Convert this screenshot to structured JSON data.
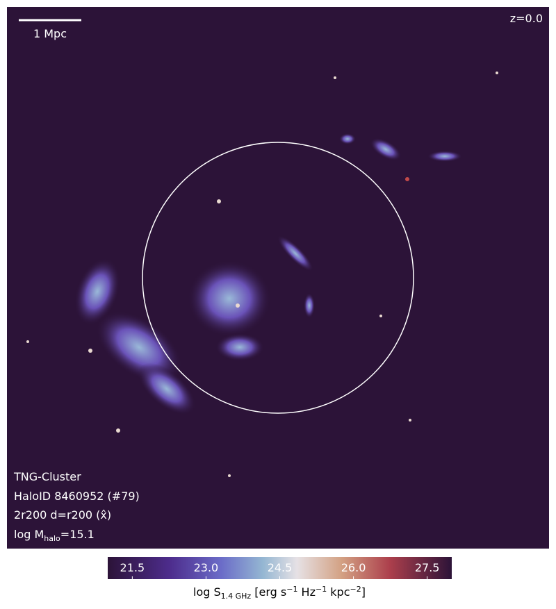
{
  "map": {
    "scale_bar": "1 Mpc",
    "redshift": "z=0.0",
    "info": [
      "TNG-Cluster",
      "HaloID 8460952 (#79)",
      "2r200 d=r200 (x̂)"
    ],
    "mass_label": [
      "log M",
      "halo",
      "=15.1"
    ]
  },
  "colorbar": {
    "lim": [
      21,
      28
    ],
    "ticks": [
      21.5,
      {
        "value": 23,
        "label": "23.0"
      },
      24.5,
      {
        "value": 26,
        "label": "26.0"
      },
      27.5
    ],
    "label": [
      "log S",
      "1.4 GHz",
      " [erg s",
      "−1",
      " Hz",
      "−1",
      " kpc",
      "−2",
      "]"
    ]
  }
}
